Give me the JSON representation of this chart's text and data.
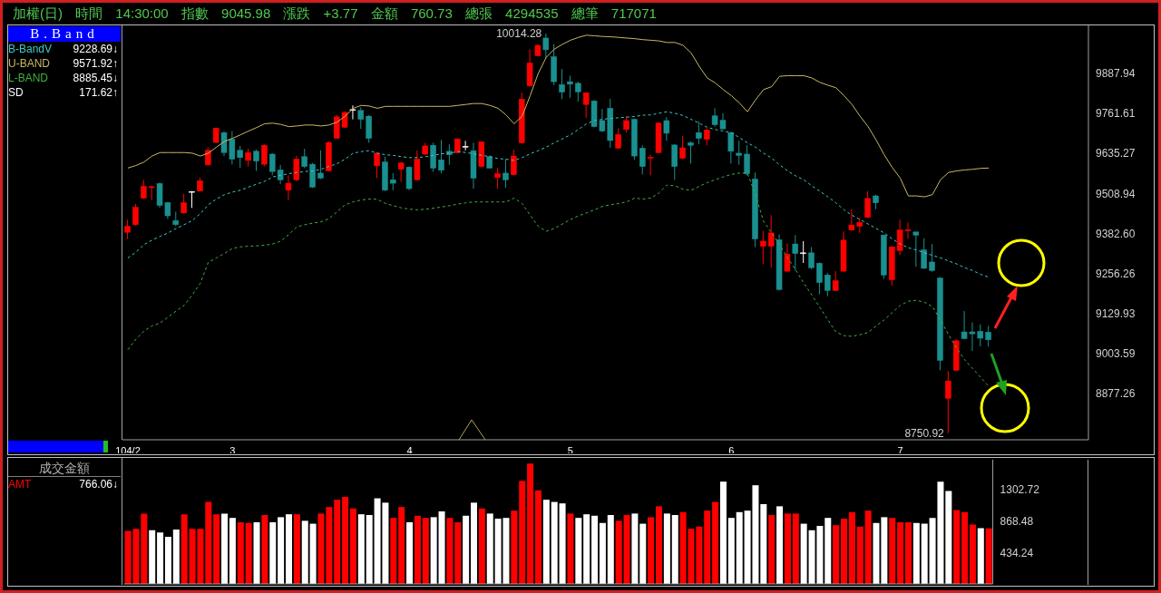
{
  "chart_data": [
    {
      "type": "candlestick",
      "title": "加權(日) 時間 14:30:00 指數 9045.98 漲跌 +3.77 金額 760.73 總張 4294535 總筆 717071",
      "legend_title": "B.Band",
      "legend": "top left",
      "categories": [
        "104/2",
        null,
        null,
        null,
        null,
        null,
        null,
        null,
        null,
        null,
        null,
        null,
        null,
        "3",
        null,
        null,
        null,
        null,
        null,
        null,
        null,
        null,
        null,
        null,
        null,
        null,
        null,
        null,
        null,
        null,
        null,
        null,
        null,
        null,
        null,
        "4",
        null,
        null,
        null,
        null,
        null,
        null,
        null,
        null,
        null,
        null,
        null,
        null,
        null,
        null,
        null,
        null,
        null,
        null,
        null,
        "5",
        null,
        null,
        null,
        null,
        null,
        null,
        null,
        null,
        null,
        null,
        null,
        null,
        null,
        null,
        null,
        null,
        null,
        null,
        null,
        "6",
        null,
        null,
        null,
        null,
        null,
        null,
        null,
        null,
        null,
        null,
        null,
        null,
        null,
        null,
        null,
        null,
        null,
        null,
        null,
        null,
        "7",
        null,
        null,
        null,
        null,
        null,
        null,
        null,
        null,
        null,
        null,
        null
      ],
      "ohlc": [
        [
          9386,
          9426,
          9365,
          9405
        ],
        [
          9410,
          9475,
          9407,
          9465
        ],
        [
          9494,
          9552,
          9491,
          9531
        ],
        [
          9528,
          9533,
          9488,
          9530
        ],
        [
          9540,
          9543,
          9463,
          9471
        ],
        [
          9480,
          9482,
          9428,
          9438
        ],
        [
          9423,
          9451,
          9405,
          9410
        ],
        [
          9447,
          9507,
          9445,
          9479
        ],
        [
          9515,
          9516,
          9463,
          9515
        ],
        [
          9516,
          9559,
          9515,
          9549
        ],
        [
          9599,
          9655,
          9597,
          9645
        ],
        [
          9670,
          9717,
          9669,
          9715
        ],
        [
          9701,
          9706,
          9627,
          9638
        ],
        [
          9680,
          9706,
          9600,
          9617
        ],
        [
          9645,
          9659,
          9589,
          9622
        ],
        [
          9613,
          9650,
          9594,
          9638
        ],
        [
          9642,
          9647,
          9580,
          9611
        ],
        [
          9601,
          9664,
          9594,
          9661
        ],
        [
          9633,
          9636,
          9566,
          9578
        ],
        [
          9583,
          9599,
          9538,
          9552
        ],
        [
          9519,
          9566,
          9488,
          9541
        ],
        [
          9552,
          9627,
          9547,
          9617
        ],
        [
          9625,
          9650,
          9589,
          9594
        ],
        [
          9601,
          9605,
          9526,
          9529
        ],
        [
          9573,
          9645,
          9554,
          9557
        ],
        [
          9580,
          9673,
          9578,
          9670
        ],
        [
          9683,
          9757,
          9681,
          9751
        ],
        [
          9718,
          9769,
          9716,
          9765
        ],
        [
          9774,
          9787,
          9743,
          9774
        ],
        [
          9771,
          9781,
          9713,
          9743
        ],
        [
          9753,
          9756,
          9669,
          9683
        ],
        [
          9596,
          9638,
          9557,
          9636
        ],
        [
          9608,
          9625,
          9516,
          9519
        ],
        [
          9552,
          9573,
          9519,
          9541
        ],
        [
          9585,
          9608,
          9545,
          9605
        ],
        [
          9592,
          9594,
          9519,
          9524
        ],
        [
          9552,
          9645,
          9550,
          9617
        ],
        [
          9633,
          9669,
          9629,
          9659
        ],
        [
          9661,
          9669,
          9577,
          9589
        ],
        [
          9615,
          9678,
          9573,
          9582
        ],
        [
          9642,
          9664,
          9599,
          9631
        ],
        [
          9638,
          9683,
          9636,
          9681
        ],
        [
          9658,
          9675,
          9645,
          9658
        ],
        [
          9644,
          9669,
          9524,
          9557
        ],
        [
          9594,
          9673,
          9591,
          9672
        ],
        [
          9625,
          9629,
          9588,
          9589
        ],
        [
          9559,
          9589,
          9524,
          9571
        ],
        [
          9573,
          9617,
          9527,
          9552
        ],
        [
          9568,
          9647,
          9566,
          9627
        ],
        [
          9669,
          9827,
          9667,
          9807
        ],
        [
          9849,
          9965,
          9846,
          9921
        ],
        [
          9944,
          9980,
          9942,
          9977
        ],
        [
          10000,
          10014.28,
          9937,
          9963
        ],
        [
          9941,
          9981,
          9851,
          9862
        ],
        [
          9853,
          9902,
          9807,
          9829
        ],
        [
          9862,
          9881,
          9811,
          9854
        ],
        [
          9857,
          9862,
          9799,
          9830
        ],
        [
          9790,
          9829,
          9748,
          9827
        ],
        [
          9801,
          9804,
          9718,
          9720
        ],
        [
          9739,
          9776,
          9703,
          9706
        ],
        [
          9778,
          9808,
          9653,
          9676
        ],
        [
          9652,
          9715,
          9650,
          9695
        ],
        [
          9711,
          9753,
          9701,
          9739
        ],
        [
          9743,
          9746,
          9615,
          9627
        ],
        [
          9652,
          9661,
          9569,
          9594
        ],
        [
          9620,
          9631,
          9566,
          9623
        ],
        [
          9638,
          9734,
          9636,
          9731
        ],
        [
          9739,
          9750,
          9675,
          9699
        ],
        [
          9662,
          9664,
          9552,
          9594
        ],
        [
          9620,
          9690,
          9617,
          9653
        ],
        [
          9669,
          9673,
          9603,
          9661
        ],
        [
          9701,
          9737,
          9664,
          9683
        ],
        [
          9680,
          9715,
          9661,
          9709
        ],
        [
          9754,
          9778,
          9720,
          9726
        ],
        [
          9740,
          9762,
          9711,
          9713
        ],
        [
          9701,
          9703,
          9603,
          9642
        ],
        [
          9636,
          9675,
          9599,
          9629
        ],
        [
          9633,
          9661,
          9566,
          9571
        ],
        [
          9554,
          9575,
          9339,
          9365
        ],
        [
          9342,
          9390,
          9286,
          9358
        ],
        [
          9342,
          9440,
          9274,
          9384
        ],
        [
          9362,
          9379,
          9202,
          9205
        ],
        [
          9263,
          9351,
          9261,
          9317
        ],
        [
          9349,
          9377,
          9265,
          9319
        ],
        [
          9321,
          9358,
          9289,
          9321
        ],
        [
          9321,
          9339,
          9270,
          9274
        ],
        [
          9288,
          9291,
          9190,
          9227
        ],
        [
          9251,
          9258,
          9183,
          9202
        ],
        [
          9202,
          9263,
          9200,
          9233
        ],
        [
          9263,
          9389,
          9261,
          9361
        ],
        [
          9393,
          9459,
          9391,
          9409
        ],
        [
          9405,
          9431,
          9384,
          9417
        ],
        [
          9433,
          9516,
          9431,
          9493
        ],
        [
          9501,
          9505,
          9459,
          9479
        ],
        [
          9377,
          9379,
          9239,
          9251
        ],
        [
          9236,
          9342,
          9218,
          9340
        ],
        [
          9328,
          9426,
          9314,
          9393
        ],
        [
          9392,
          9417,
          9365,
          9394
        ],
        [
          9387,
          9387,
          9277,
          9377
        ],
        [
          9330,
          9367,
          9270,
          9272
        ],
        [
          9292,
          9349,
          9261,
          9265
        ],
        [
          9241,
          9244,
          8950,
          8981
        ],
        [
          8861,
          8947,
          8750.92,
          8916
        ],
        [
          8950,
          9048,
          8947,
          9043
        ],
        [
          9071,
          9137,
          9048,
          9050
        ],
        [
          9071,
          9101,
          9011,
          9065
        ],
        [
          9073,
          9095,
          9025,
          9051
        ],
        [
          9070,
          9090,
          9025,
          9045.98
        ]
      ],
      "colors": [
        "#ff0000",
        "#ff0000",
        "#ff0000",
        "#ff0000",
        "#1a9090",
        "#1a9090",
        "#1a9090",
        "#ff0000",
        "#ffffff",
        "#ff0000",
        "#ff0000",
        "#ff0000",
        "#1a9090",
        "#1a9090",
        "#1a9090",
        "#ff0000",
        "#1a9090",
        "#ff0000",
        "#1a9090",
        "#1a9090",
        "#ff0000",
        "#ff0000",
        "#1a9090",
        "#1a9090",
        "#1a9090",
        "#ff0000",
        "#ff0000",
        "#ff0000",
        "#ffffff",
        "#1a9090",
        "#1a9090",
        "#ff0000",
        "#1a9090",
        "#1a9090",
        "#ff0000",
        "#1a9090",
        "#ff0000",
        "#ff0000",
        "#1a9090",
        "#1a9090",
        "#1a9090",
        "#ff0000",
        "#ffffff",
        "#1a9090",
        "#ff0000",
        "#1a9090",
        "#ff0000",
        "#1a9090",
        "#ff0000",
        "#ff0000",
        "#ff0000",
        "#ff0000",
        "#1a9090",
        "#1a9090",
        "#1a9090",
        "#1a9090",
        "#1a9090",
        "#ff0000",
        "#1a9090",
        "#1a9090",
        "#1a9090",
        "#ff0000",
        "#ff0000",
        "#1a9090",
        "#1a9090",
        "#ff0000",
        "#ff0000",
        "#1a9090",
        "#1a9090",
        "#ff0000",
        "#1a9090",
        "#1a9090",
        "#ff0000",
        "#1a9090",
        "#1a9090",
        "#1a9090",
        "#1a9090",
        "#1a9090",
        "#1a9090",
        "#ff0000",
        "#ff0000",
        "#1a9090",
        "#ff0000",
        "#1a9090",
        "#ffffff",
        "#1a9090",
        "#1a9090",
        "#1a9090",
        "#ff0000",
        "#ff0000",
        "#ff0000",
        "#ff0000",
        "#ff0000",
        "#1a9090",
        "#1a9090",
        "#ff0000",
        "#ff0000",
        "#ff0000",
        "#1a9090",
        "#1a9090",
        "#1a9090",
        "#1a9090",
        "#ff0000",
        "#ff0000",
        "#1a9090",
        "#1a9090",
        "#1a9090",
        "#1a9090"
      ],
      "series": [
        {
          "name": "B-BandV",
          "type": "line",
          "color": "#40c8c8",
          "line_style": "dashed",
          "values": [
            9305,
            9323,
            9347,
            9361,
            9373,
            9384,
            9398,
            9410,
            9423,
            9445,
            9473,
            9491,
            9505,
            9513,
            9519,
            9529,
            9538,
            9547,
            9561,
            9566,
            9571,
            9575,
            9578,
            9580,
            9585,
            9594,
            9603,
            9617,
            9636,
            9641,
            9644,
            9636,
            9631,
            9629,
            9625,
            9622,
            9622,
            9625,
            9629,
            9634,
            9636,
            9641,
            9638,
            9634,
            9629,
            9625,
            9619,
            9617,
            9613,
            9622,
            9634,
            9644,
            9655,
            9669,
            9681,
            9694,
            9711,
            9729,
            9739,
            9743,
            9746,
            9748,
            9750,
            9752,
            9756,
            9757,
            9762,
            9767,
            9762,
            9755,
            9743,
            9731,
            9718,
            9711,
            9706,
            9701,
            9685,
            9669,
            9655,
            9636,
            9621,
            9599,
            9580,
            9564,
            9552,
            9533,
            9516,
            9498,
            9479,
            9457,
            9440,
            9426,
            9412,
            9398,
            9384,
            9365,
            9349,
            9337,
            9330,
            9321,
            9313,
            9305,
            9295,
            9286,
            9274,
            9265,
            9253,
            9244
          ]
        },
        {
          "name": "U-BAND",
          "type": "line",
          "color": "#c8b860",
          "line_style": "solid",
          "values": [
            9589,
            9597,
            9608,
            9627,
            9638,
            9638,
            9638,
            9638,
            9636,
            9627,
            9636,
            9655,
            9673,
            9683,
            9694,
            9706,
            9717,
            9729,
            9731,
            9727,
            9720,
            9722,
            9725,
            9725,
            9722,
            9725,
            9734,
            9753,
            9778,
            9787,
            9785,
            9778,
            9784,
            9784,
            9784,
            9784,
            9784,
            9784,
            9784,
            9784,
            9784,
            9787,
            9790,
            9793,
            9793,
            9787,
            9778,
            9757,
            9729,
            9753,
            9818,
            9888,
            9939,
            9965,
            9980,
            9993,
            10002,
            10009,
            10007,
            10005,
            10004,
            10002,
            10000,
            9998,
            9995,
            9993,
            9991,
            9986,
            9986,
            9977,
            9953,
            9911,
            9874,
            9858,
            9837,
            9818,
            9795,
            9767,
            9804,
            9837,
            9846,
            9879,
            9881,
            9881,
            9881,
            9874,
            9860,
            9851,
            9843,
            9818,
            9790,
            9753,
            9720,
            9678,
            9631,
            9591,
            9557,
            9501,
            9501,
            9498,
            9505,
            9552,
            9575,
            9580,
            9583,
            9585,
            9588,
            9589
          ]
        },
        {
          "name": "L-BAND",
          "type": "line",
          "color": "#40b040",
          "line_style": "dashed",
          "values": [
            9015,
            9048,
            9074,
            9090,
            9099,
            9118,
            9137,
            9155,
            9188,
            9225,
            9291,
            9305,
            9319,
            9335,
            9340,
            9342,
            9343,
            9345,
            9349,
            9358,
            9379,
            9403,
            9410,
            9415,
            9419,
            9429,
            9451,
            9473,
            9482,
            9488,
            9491,
            9490,
            9477,
            9470,
            9463,
            9459,
            9457,
            9459,
            9462,
            9466,
            9470,
            9475,
            9479,
            9482,
            9482,
            9482,
            9482,
            9482,
            9494,
            9477,
            9440,
            9405,
            9389,
            9398,
            9412,
            9426,
            9438,
            9447,
            9457,
            9468,
            9473,
            9477,
            9482,
            9494,
            9491,
            9494,
            9510,
            9535,
            9533,
            9522,
            9519,
            9531,
            9543,
            9552,
            9561,
            9569,
            9573,
            9573,
            9505,
            9421,
            9384,
            9347,
            9305,
            9267,
            9225,
            9188,
            9149,
            9109,
            9071,
            9059,
            9057,
            9062,
            9069,
            9090,
            9109,
            9132,
            9155,
            9168,
            9171,
            9165,
            9151,
            9109,
            9062,
            9020,
            8983,
            8955,
            8927,
            8899
          ]
        }
      ],
      "annotations": [
        "9228.69↓",
        "9571.92↑",
        "8885.45↓",
        "SD 171.62↑",
        "10014.28",
        "8750.92"
      ],
      "ylim": [
        8730,
        10040
      ],
      "yticks": [
        9887.94,
        9761.61,
        9635.27,
        9508.94,
        {
          "value": 9382.6,
          "label": "9382.60"
        },
        9256.26,
        9129.93,
        9003.59,
        8877.26
      ]
    },
    {
      "type": "bar",
      "title": "成交金額",
      "tick_labels": "y",
      "categories": [
        null,
        null,
        null,
        null,
        null,
        null,
        null,
        null,
        null,
        null,
        null,
        null,
        null,
        null,
        null,
        null,
        null,
        null,
        null,
        null,
        null,
        null,
        null,
        null,
        null,
        null,
        null,
        null,
        null,
        null,
        null,
        null,
        null,
        null,
        null,
        null,
        null,
        null,
        null,
        null,
        null,
        null,
        null,
        null,
        null,
        null,
        null,
        null,
        null,
        null,
        null,
        null,
        null,
        null,
        null,
        null,
        null,
        null,
        null,
        null,
        null,
        null,
        null,
        null,
        null,
        null,
        null,
        null,
        null,
        null,
        null,
        null,
        null,
        null,
        null,
        null,
        null,
        null,
        null,
        null,
        null,
        null,
        null,
        null,
        null,
        null,
        null,
        null,
        null,
        null,
        null,
        null,
        null,
        null,
        null,
        null,
        null,
        null,
        null,
        null,
        null,
        null,
        null,
        null,
        null,
        null,
        null,
        null
      ],
      "series": [
        {
          "name": "AMT",
          "color": "#ff0000",
          "values": [
            730,
            760,
            970,
            740,
            710,
            650,
            750,
            960,
            760,
            760,
            1130,
            960,
            970,
            910,
            850,
            840,
            850,
            950,
            850,
            920,
            960,
            960,
            870,
            830,
            970,
            1060,
            1160,
            1200,
            1040,
            960,
            950,
            1180,
            1120,
            910,
            1060,
            850,
            940,
            910,
            920,
            1000,
            910,
            850,
            940,
            1120,
            1040,
            970,
            900,
            910,
            1010,
            1420,
            1660,
            1290,
            1160,
            1130,
            1110,
            970,
            910,
            960,
            940,
            840,
            950,
            870,
            950,
            970,
            830,
            920,
            1070,
            970,
            950,
            990,
            760,
            790,
            1010,
            1130,
            1410,
            910,
            990,
            1010,
            1360,
            1100,
            950,
            1070,
            970,
            970,
            830,
            740,
            800,
            910,
            810,
            900,
            990,
            790,
            1010,
            840,
            920,
            910,
            850,
            850,
            840,
            830,
            910,
            1410,
            1280,
            1020,
            990,
            820,
            770,
            766.06
          ],
          "colors": [
            "#ff0000",
            "#ff0000",
            "#ff0000",
            "#ffffff",
            "#ffffff",
            "#ffffff",
            "#ffffff",
            "#ff0000",
            "#ff0000",
            "#ff0000",
            "#ff0000",
            "#ff0000",
            "#ffffff",
            "#ffffff",
            "#ff0000",
            "#ff0000",
            "#ffffff",
            "#ff0000",
            "#ffffff",
            "#ffffff",
            "#ffffff",
            "#ff0000",
            "#ffffff",
            "#ffffff",
            "#ff0000",
            "#ff0000",
            "#ff0000",
            "#ff0000",
            "#ff0000",
            "#ffffff",
            "#ffffff",
            "#ffffff",
            "#ffffff",
            "#ff0000",
            "#ff0000",
            "#ffffff",
            "#ff0000",
            "#ff0000",
            "#ffffff",
            "#ffffff",
            "#ff0000",
            "#ff0000",
            "#ffffff",
            "#ffffff",
            "#ff0000",
            "#ffffff",
            "#ffffff",
            "#ffffff",
            "#ff0000",
            "#ff0000",
            "#ff0000",
            "#ff0000",
            "#ffffff",
            "#ffffff",
            "#ffffff",
            "#ff0000",
            "#ffffff",
            "#ffffff",
            "#ffffff",
            "#ffffff",
            "#ffffff",
            "#ff0000",
            "#ff0000",
            "#ffffff",
            "#ffffff",
            "#ff0000",
            "#ff0000",
            "#ffffff",
            "#ffffff",
            "#ff0000",
            "#ff0000",
            "#ff0000",
            "#ff0000",
            "#ff0000",
            "#ffffff",
            "#ffffff",
            "#ffffff",
            "#ffffff",
            "#ffffff",
            "#ffffff",
            "#ff0000",
            "#ffffff",
            "#ff0000",
            "#ff0000",
            "#ffffff",
            "#ffffff",
            "#ffffff",
            "#ffffff",
            "#ff0000",
            "#ff0000",
            "#ff0000",
            "#ff0000",
            "#ff0000",
            "#ffffff",
            "#ffffff",
            "#ff0000",
            "#ff0000",
            "#ff0000",
            "#ffffff",
            "#ffffff",
            "#ffffff",
            "#ffffff",
            "#ffffff",
            "#ff0000",
            "#ff0000",
            "#ff0000",
            "#ffffff",
            "#ff0000"
          ]
        }
      ],
      "annotations": [
        "766.06↓"
      ],
      "ylim": [
        0,
        1712
      ],
      "yticks": [
        434.24,
        868.48,
        1302.72
      ]
    }
  ]
}
